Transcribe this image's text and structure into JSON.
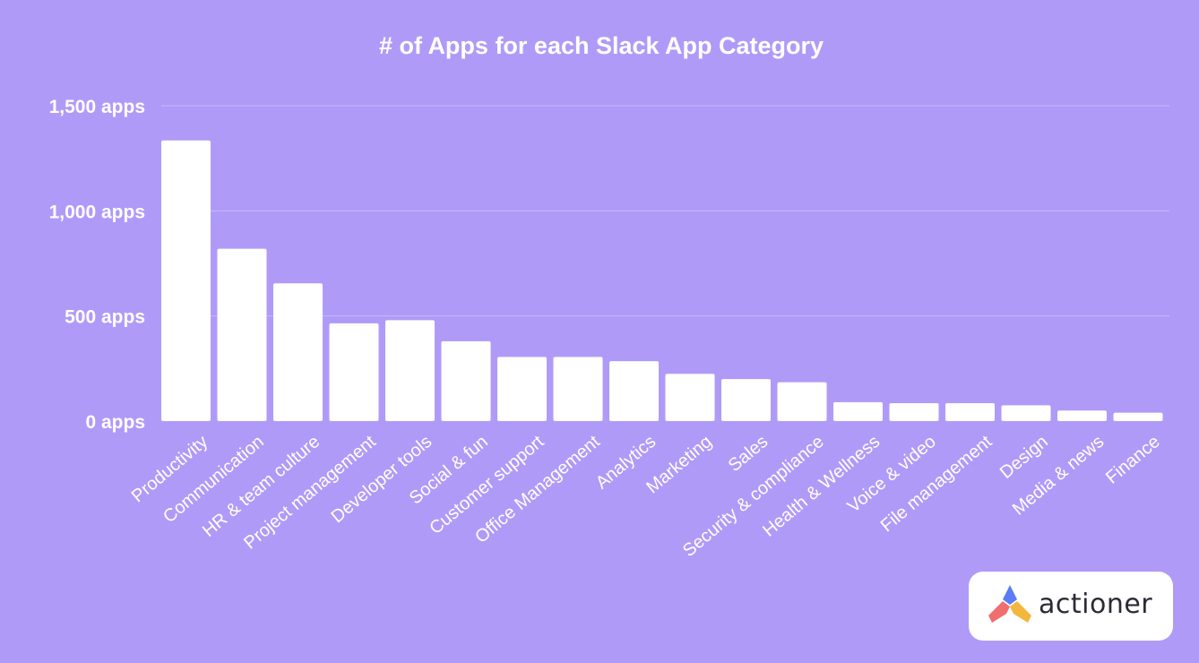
{
  "chart_data": {
    "type": "bar",
    "title": "# of Apps for each Slack App Category",
    "xlabel": "",
    "ylabel": "",
    "ylim": [
      0,
      1500
    ],
    "yticks": [
      {
        "value": 0,
        "label": "0 apps"
      },
      {
        "value": 500,
        "label": "500 apps"
      },
      {
        "value": 1000,
        "label": "1,000 apps"
      },
      {
        "value": 1500,
        "label": "1,500 apps"
      }
    ],
    "grid": true,
    "categories": [
      "Productivity",
      "Communication",
      "HR & team culture",
      "Project management",
      "Developer tools",
      "Social & fun",
      "Customer support",
      "Office Management",
      "Analytics",
      "Marketing",
      "Sales",
      "Security & compliance",
      "Health & Wellness",
      "Voice & video",
      "File management",
      "Design",
      "Media & news",
      "Finance"
    ],
    "values": [
      1335,
      820,
      655,
      465,
      480,
      380,
      305,
      305,
      285,
      225,
      200,
      185,
      90,
      85,
      85,
      75,
      50,
      40
    ],
    "bar_color": "#ffffff",
    "background_color": "#b09af8"
  },
  "logo": {
    "text": "actioner",
    "icon": "actioner-logo-icon"
  }
}
